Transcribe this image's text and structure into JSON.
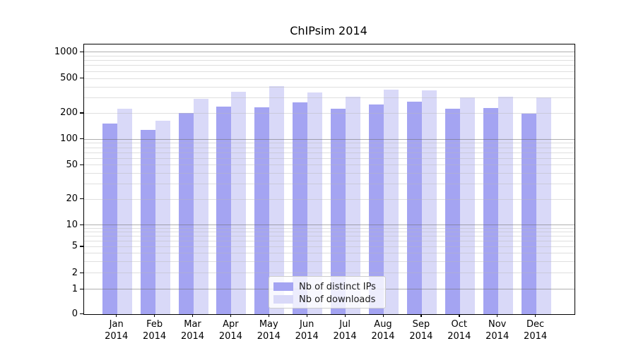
{
  "chart_data": {
    "type": "bar",
    "title": "ChIPsim 2014",
    "categories": [
      "Jan 2014",
      "Feb 2014",
      "Mar 2014",
      "Apr 2014",
      "May 2014",
      "Jun 2014",
      "Jul 2014",
      "Aug 2014",
      "Sep 2014",
      "Oct 2014",
      "Nov 2014",
      "Dec 2014"
    ],
    "category_line1": [
      "Jan",
      "Feb",
      "Mar",
      "Apr",
      "May",
      "Jun",
      "Jul",
      "Aug",
      "Sep",
      "Oct",
      "Nov",
      "Dec"
    ],
    "category_line2": "2014",
    "series": [
      {
        "name": "Nb of distinct IPs",
        "color": "#a4a4f2",
        "values": [
          155,
          130,
          203,
          240,
          237,
          271,
          226,
          255,
          276,
          229,
          232,
          201
        ]
      },
      {
        "name": "Nb of downloads",
        "color": "#d9d9f8",
        "values": [
          229,
          166,
          297,
          353,
          410,
          346,
          310,
          377,
          371,
          305,
          312,
          306
        ]
      }
    ],
    "xlabel": "",
    "ylabel": "",
    "yscale": "log-like with compressed 0-10 region (0 shown at axis base)",
    "y_ticks": [
      0,
      1,
      2,
      5,
      10,
      20,
      50,
      100,
      200,
      500,
      1000
    ],
    "ylim": [
      0,
      1200
    ],
    "y_major_gridlines": [
      1,
      10,
      100,
      1000
    ],
    "y_minor_gridlines": [
      2,
      3,
      4,
      5,
      6,
      7,
      8,
      9,
      20,
      30,
      40,
      50,
      60,
      70,
      80,
      90,
      200,
      300,
      400,
      500,
      600,
      700,
      800,
      900
    ],
    "y_anchor_fractions": [
      [
        0,
        0
      ],
      [
        1,
        0.0916
      ],
      [
        2,
        0.1518
      ],
      [
        5,
        0.2487
      ],
      [
        10,
        0.329
      ],
      [
        20,
        0.4249
      ],
      [
        50,
        0.5515
      ],
      [
        100,
        0.6474
      ],
      [
        200,
        0.7435
      ],
      [
        500,
        0.873
      ],
      [
        1000,
        0.9712
      ]
    ],
    "grid": "horizontal major+minor, drawn over bars",
    "legend_position": "lower center",
    "background_color": "#ffffff",
    "axis_color": "#000000"
  },
  "legend": {
    "items": [
      {
        "label": "Nb of distinct IPs",
        "color": "#a4a4f2"
      },
      {
        "label": "Nb of downloads",
        "color": "#d9d9f8"
      }
    ]
  }
}
